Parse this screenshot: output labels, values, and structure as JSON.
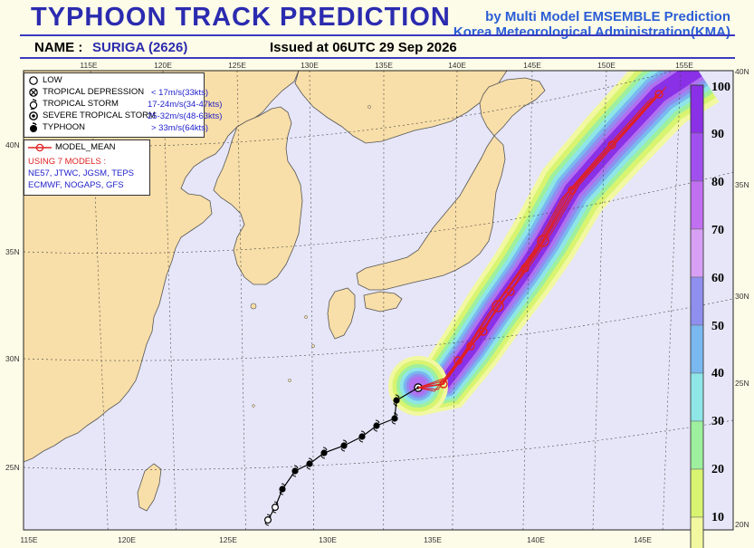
{
  "header": {
    "title": "TYPHOON  TRACK  PREDICTION",
    "by_line": "by Multi Model EMSEMBLE Prediction",
    "org": "Korea Meteorological Administration(KMA)",
    "name_label": "NAME :",
    "name_value": "SURIGA (2626)",
    "issued": "Issued at  06UTC 29 Sep 2026"
  },
  "legend": {
    "items": [
      {
        "label": "LOW",
        "icon": "low-icon",
        "threshold": ""
      },
      {
        "label": "TROPICAL DEPRESSION",
        "icon": "tropical-depression-icon",
        "threshold": "< 17m/s(33kts)"
      },
      {
        "label": "TROPICAL STORM",
        "icon": "tropical-storm-icon",
        "threshold": "17-24m/s(34-47kts)"
      },
      {
        "label": "SEVERE TROPICAL STORM",
        "icon": "severe-tropical-storm-icon",
        "threshold": "25-32m/s(48-63kts)"
      },
      {
        "label": "TYPHOON",
        "icon": "typhoon-icon",
        "threshold": "> 33m/s(64kts)"
      }
    ]
  },
  "model_legend": {
    "mean_label": "MODEL_MEAN",
    "using": "USING 7 MODELS :",
    "models_line1": "NE57, JTWC, JGSM, TEPS",
    "models_line2": "ECMWF, NOGAPS, GFS"
  },
  "colorbar": {
    "labels": [
      "100",
      "90",
      "80",
      "70",
      "60",
      "50",
      "40",
      "30",
      "20",
      "10"
    ],
    "colors": [
      "#8a30e6",
      "#a050ee",
      "#c070f0",
      "#d8a0f4",
      "#8f8ff0",
      "#7ab8f0",
      "#8ee6e6",
      "#9ef09e",
      "#d8f470",
      "#f2f8a0"
    ]
  },
  "axes": {
    "lon_top": [
      "115E",
      "120E",
      "125E",
      "130E",
      "135E",
      "140E",
      "145E",
      "150E",
      "155E"
    ],
    "lon_bottom": [
      "115E",
      "120E",
      "125E",
      "130E",
      "135E",
      "140E",
      "145E"
    ],
    "lat_left": [
      "40N",
      "35N",
      "30N",
      "25N"
    ],
    "lat_right": [
      "40N",
      "35N",
      "30N",
      "25N",
      "20N"
    ]
  },
  "colors": {
    "ocean": "#e6e6f8",
    "land": "#f8dea8",
    "track_observed": "#000000",
    "track_forecast": "#e02020",
    "title": "#2b2bb0",
    "by_line": "#2b5dd6"
  }
}
